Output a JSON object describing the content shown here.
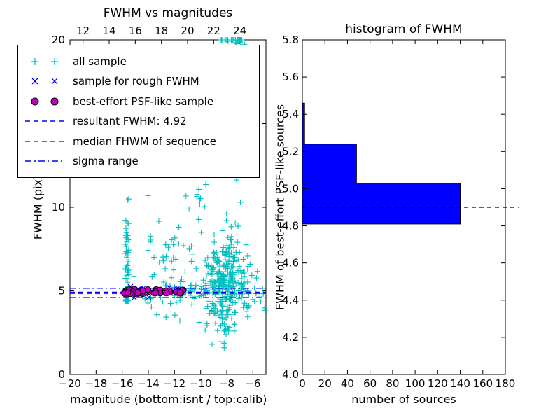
{
  "figure": {
    "background": "#ffffff"
  },
  "palette": {
    "all_sample": "#00bfbf",
    "rough_sample": "#0000ff",
    "psf_sample": "#bf00bf",
    "resultant_line": "#0000ff",
    "median_line": "#ff0000",
    "sigma_line": "#0000ff",
    "histogram_bar": "#0000ff",
    "axes": "#000000"
  },
  "chart_data": [
    {
      "type": "scatter",
      "title": "FWHM vs magnitudes",
      "xlabel": "magnitude (bottom:isnt / top:calib)",
      "ylabel": "FWHM (pix)",
      "xlim": [
        -20,
        -5
      ],
      "ylim": [
        0,
        20
      ],
      "grid": false,
      "x_ticks": {
        "values": [
          -20,
          -18,
          -16,
          -14,
          -12,
          -10,
          -8,
          -6
        ],
        "labels": [
          "−20",
          "−18",
          "−16",
          "−14",
          "−12",
          "−10",
          "−8",
          "−6"
        ]
      },
      "top_axis_ticks": {
        "values": [
          12,
          14,
          16,
          18,
          20,
          22,
          24
        ],
        "labels": [
          "12",
          "14",
          "16",
          "18",
          "20",
          "22",
          "24"
        ]
      },
      "top_axis_offset": -31,
      "y_ticks": {
        "values": [
          0,
          5,
          10,
          15,
          20
        ],
        "labels": [
          "0",
          "5",
          "10",
          "15",
          "20"
        ]
      },
      "series": [
        {
          "name": "all sample",
          "marker": "plus",
          "color": "#00bfbf",
          "clusters": [
            {
              "n": 55,
              "x": {
                "dist": "uniform",
                "min": -15.78,
                "max": -15.5
              },
              "y": {
                "dist": "gauss",
                "mean": 6.2,
                "sigma": 2.3,
                "min": 4.4,
                "max": 13.3
              }
            },
            {
              "n": 50,
              "x": {
                "dist": "gauss",
                "mean": -12.7,
                "sigma": 1.1,
                "min": -15.1,
                "max": -10.3
              },
              "y": {
                "dist": "gauss",
                "mean": 6.4,
                "sigma": 2.2,
                "min": 3.2,
                "max": 12.6
              }
            },
            {
              "n": 280,
              "x": {
                "dist": "gauss",
                "mean": -8.2,
                "sigma": 0.75,
                "min": -10.3,
                "max": -6.4
              },
              "y": {
                "dist": "gauss",
                "mean": 5.4,
                "sigma": 1.4,
                "min": 2.6,
                "max": 9.8
              }
            },
            {
              "n": 150,
              "x": {
                "dist": "gauss",
                "mean": -7.3,
                "sigma": 0.55,
                "min": -8.7,
                "max": -5.9
              },
              "y": {
                "dist": "gauss",
                "mean": 16.5,
                "sigma": 3.0,
                "min": 8.6,
                "max": 20
              }
            },
            {
              "n": 28,
              "x": {
                "dist": "uniform",
                "min": -6.9,
                "max": -5.05
              },
              "y": {
                "dist": "gauss",
                "mean": 5.0,
                "sigma": 0.8,
                "min": 3.2,
                "max": 7.2
              }
            },
            {
              "n": 12,
              "x": {
                "dist": "gauss",
                "mean": -8.0,
                "sigma": 0.9,
                "min": -10.0,
                "max": -6.3
              },
              "y": {
                "dist": "uniform",
                "min": 1.6,
                "max": 3.2
              }
            },
            {
              "n": 45,
              "x": {
                "dist": "uniform",
                "min": -12.2,
                "max": -9.4
              },
              "y": {
                "dist": "gauss",
                "mean": 5.0,
                "sigma": 0.3,
                "min": 4.2,
                "max": 6.0
              }
            },
            {
              "n": 18,
              "x": {
                "dist": "uniform",
                "min": -11.2,
                "max": -9.3
              },
              "y": {
                "dist": "uniform",
                "min": 6.0,
                "max": 12.0
              }
            }
          ]
        },
        {
          "name": "sample for rough FWHM",
          "marker": "x",
          "color": "#0000ff",
          "clusters": [
            {
              "n": 28,
              "x": {
                "dist": "uniform",
                "min": -15.9,
                "max": -11.25
              },
              "y": {
                "dist": "gauss",
                "mean": 4.93,
                "sigma": 0.13,
                "min": 4.6,
                "max": 5.3
              }
            }
          ]
        },
        {
          "name": "best-effort PSF-like sample",
          "marker": "circle",
          "color": "#bf00bf",
          "clusters": [
            {
              "n": 46,
              "x": {
                "dist": "uniform",
                "min": -15.85,
                "max": -11.3
              },
              "y": {
                "dist": "gauss",
                "mean": 4.95,
                "sigma": 0.09,
                "min": 4.72,
                "max": 5.18
              }
            }
          ]
        }
      ],
      "hlines": [
        {
          "name": "sigma-range-upper",
          "y": 5.15,
          "color": "#0000ff",
          "style": "dashdot"
        },
        {
          "name": "resultant-fwhm",
          "y": 4.92,
          "color": "#0000ff",
          "style": "dashed"
        },
        {
          "name": "median-fwhm-of-sequence",
          "y": 4.83,
          "color": "#ff0000",
          "style": "dashed"
        },
        {
          "name": "sigma-range-lower",
          "y": 4.6,
          "color": "#0000ff",
          "style": "dashdot"
        }
      ],
      "legend": {
        "position": "upper left",
        "items": [
          {
            "label": "all sample",
            "swatch": "plus",
            "color": "#00bfbf"
          },
          {
            "label": "sample for rough FWHM",
            "swatch": "x",
            "color": "#0000ff"
          },
          {
            "label": "best-effort PSF-like sample",
            "swatch": "circle",
            "color": "#bf00bf"
          },
          {
            "label": "resultant FWHM: 4.92",
            "swatch": "dashed",
            "color": "#0000ff"
          },
          {
            "label": "median FHWM of sequence",
            "swatch": "dashed",
            "color": "#ff0000"
          },
          {
            "label": "sigma range",
            "swatch": "dashdot",
            "color": "#0000ff"
          }
        ]
      }
    },
    {
      "type": "bar",
      "orientation": "horizontal",
      "title": "histogram of FWHM",
      "xlabel": "number of sources",
      "ylabel": "FWHM of best-effort PSF-like sources",
      "xlim": [
        0,
        180
      ],
      "ylim": [
        4.0,
        5.8
      ],
      "grid": false,
      "x_ticks": {
        "values": [
          0,
          20,
          40,
          60,
          80,
          100,
          120,
          140,
          160,
          180
        ],
        "labels": [
          "0",
          "20",
          "40",
          "60",
          "80",
          "100",
          "120",
          "140",
          "160",
          "180"
        ]
      },
      "y_ticks": {
        "values": [
          4.0,
          4.2,
          4.4,
          4.6,
          4.8,
          5.0,
          5.2,
          5.4,
          5.6,
          5.8
        ],
        "labels": [
          "4.0",
          "4.2",
          "4.4",
          "4.6",
          "4.8",
          "5.0",
          "5.2",
          "5.4",
          "5.6",
          "5.8"
        ]
      },
      "bar_color": "#0000ff",
      "bins": [
        {
          "from": 4.81,
          "to": 5.03,
          "count": 140
        },
        {
          "from": 5.03,
          "to": 5.24,
          "count": 48
        },
        {
          "from": 5.24,
          "to": 5.46,
          "count": 2
        }
      ],
      "median_line": {
        "y": 4.9,
        "color": "#000000",
        "style": "dashed"
      }
    }
  ]
}
